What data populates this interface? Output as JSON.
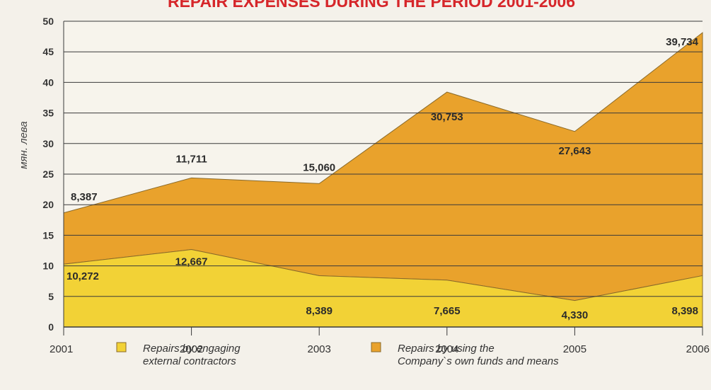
{
  "chart_data": {
    "type": "area",
    "title": "REPAIR EXPENSES DURING THE PERIOD 2001-2006",
    "ylabel": "мян. лева",
    "xlabel": "",
    "ylim": [
      0,
      50
    ],
    "yticks": [
      "0",
      "5",
      "10",
      "15",
      "20",
      "25",
      "30",
      "35",
      "40",
      "45",
      "50"
    ],
    "categories": [
      "2001",
      "2002",
      "2003",
      "2004",
      "2005",
      "2006"
    ],
    "stacked": true,
    "grid": true,
    "series": [
      {
        "name": "Repairs by engaging external contractors",
        "legend_lines": [
          "Repairs by engaging",
          "external contractors"
        ],
        "values": [
          10.272,
          12.667,
          8.389,
          7.665,
          4.33,
          8.398
        ],
        "labels": [
          "10,272",
          "12,667",
          "8,389",
          "7,665",
          "4,330",
          "8,398"
        ],
        "color": "#f2d236"
      },
      {
        "name": "Repairs by using the Company`s own funds and means",
        "legend_lines": [
          "Repairs by using the",
          "Company`s own funds and  means"
        ],
        "values": [
          8.387,
          11.711,
          15.06,
          30.753,
          27.643,
          39.734
        ],
        "labels": [
          "8,387",
          "11,711",
          "15,060",
          "30,753",
          "27,643",
          "39,734"
        ],
        "color": "#e9a22c"
      }
    ],
    "legend_position": "bottom"
  }
}
